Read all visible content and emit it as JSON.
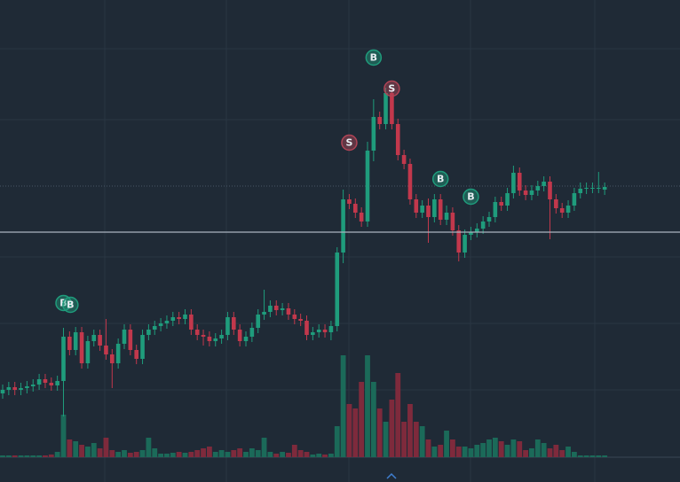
{
  "chart_data": {
    "type": "candlestick",
    "ylim": [
      0,
      544
    ],
    "up_color": "#1f9c7c",
    "down_color": "#c2384c",
    "volume_up_color": "#1b6a59",
    "volume_down_color": "#7e2a3c",
    "open": [
      100,
      104,
      107,
      104,
      106,
      108,
      110,
      116,
      112,
      109,
      114,
      164,
      149,
      169,
      134,
      159,
      166,
      154,
      144,
      134,
      156,
      172,
      149,
      139,
      166,
      172,
      176,
      179,
      182,
      186,
      184,
      189,
      172,
      166,
      164,
      159,
      162,
      166,
      186,
      172,
      159,
      164,
      174,
      189,
      192,
      199,
      194,
      196,
      189,
      184,
      182,
      166,
      169,
      172,
      169,
      176,
      259,
      319,
      314,
      304,
      294,
      374,
      412,
      404,
      439,
      404,
      369,
      359,
      319,
      304,
      312,
      299,
      319,
      296,
      304,
      284,
      259,
      279,
      282,
      286,
      294,
      299,
      316,
      312,
      326,
      349,
      329,
      324,
      329,
      334,
      339,
      319,
      309,
      304,
      312,
      326,
      331,
      332,
      332,
      330
    ],
    "high": [
      110,
      113,
      113,
      112,
      114,
      116,
      122,
      122,
      118,
      120,
      174,
      170,
      175,
      175,
      165,
      172,
      172,
      184,
      150,
      162,
      178,
      178,
      155,
      172,
      178,
      182,
      185,
      188,
      192,
      192,
      195,
      195,
      178,
      172,
      170,
      168,
      172,
      192,
      192,
      178,
      170,
      180,
      195,
      217,
      205,
      205,
      202,
      202,
      195,
      190,
      188,
      175,
      178,
      178,
      182,
      265,
      330,
      325,
      320,
      310,
      384,
      432,
      418,
      445,
      445,
      410,
      375,
      365,
      325,
      318,
      320,
      325,
      325,
      312,
      310,
      290,
      285,
      288,
      292,
      300,
      305,
      322,
      322,
      332,
      357,
      355,
      335,
      335,
      340,
      345,
      345,
      325,
      315,
      318,
      332,
      338,
      338,
      338,
      350,
      338
    ],
    "low": [
      94,
      98,
      98,
      98,
      100,
      102,
      104,
      106,
      103,
      103,
      74,
      143,
      143,
      128,
      128,
      153,
      148,
      138,
      106,
      128,
      150,
      143,
      133,
      133,
      160,
      166,
      170,
      173,
      176,
      178,
      178,
      166,
      160,
      154,
      153,
      153,
      156,
      160,
      166,
      153,
      153,
      158,
      168,
      183,
      186,
      188,
      188,
      183,
      178,
      176,
      160,
      160,
      163,
      163,
      160,
      170,
      247,
      308,
      298,
      288,
      288,
      362,
      398,
      398,
      398,
      363,
      353,
      313,
      298,
      298,
      270,
      293,
      290,
      290,
      278,
      249,
      253,
      273,
      276,
      280,
      288,
      293,
      306,
      306,
      320,
      323,
      318,
      318,
      323,
      328,
      274,
      303,
      298,
      298,
      306,
      320,
      325,
      326,
      326,
      324
    ],
    "close": [
      104,
      107,
      104,
      106,
      108,
      110,
      116,
      112,
      109,
      114,
      164,
      149,
      169,
      134,
      159,
      166,
      154,
      144,
      134,
      156,
      172,
      149,
      139,
      166,
      172,
      176,
      179,
      182,
      186,
      184,
      189,
      172,
      166,
      164,
      159,
      162,
      166,
      186,
      172,
      159,
      164,
      174,
      189,
      192,
      199,
      194,
      196,
      189,
      184,
      182,
      166,
      169,
      172,
      169,
      176,
      259,
      319,
      314,
      304,
      294,
      374,
      412,
      404,
      439,
      404,
      369,
      359,
      319,
      304,
      312,
      299,
      319,
      296,
      304,
      284,
      259,
      279,
      282,
      286,
      294,
      299,
      316,
      312,
      326,
      349,
      329,
      324,
      329,
      334,
      339,
      319,
      309,
      304,
      312,
      326,
      331,
      332,
      332,
      332,
      333
    ],
    "volume": [
      2,
      2,
      2,
      2,
      2,
      2,
      2,
      2,
      3,
      6,
      48,
      20,
      18,
      14,
      12,
      16,
      10,
      22,
      8,
      6,
      8,
      5,
      6,
      8,
      22,
      10,
      4,
      4,
      5,
      6,
      5,
      6,
      8,
      10,
      12,
      6,
      8,
      6,
      8,
      10,
      6,
      10,
      8,
      22,
      6,
      4,
      6,
      5,
      14,
      8,
      6,
      3,
      4,
      3,
      4,
      35,
      115,
      60,
      55,
      85,
      115,
      85,
      55,
      40,
      65,
      95,
      40,
      60,
      40,
      35,
      20,
      12,
      14,
      30,
      20,
      12,
      12,
      10,
      14,
      16,
      20,
      22,
      18,
      14,
      20,
      18,
      8,
      10,
      20,
      16,
      10,
      14,
      8,
      12,
      6,
      2,
      2,
      2,
      2,
      2
    ],
    "price_line": 282,
    "price_line_color": "#aab4bf",
    "last_price_line": 334,
    "last_price_line_color": "#4a5666",
    "markers": [
      {
        "label": "B",
        "index": 10,
        "price": 202,
        "color": "#1f9c7c"
      },
      {
        "label": "B",
        "index": 11,
        "price": 200,
        "color": "#1f9c7c"
      },
      {
        "label": "S",
        "index": 57,
        "price": 383,
        "color": "#b04456"
      },
      {
        "label": "B",
        "index": 61,
        "price": 479,
        "color": "#1f9c7c"
      },
      {
        "label": "S",
        "index": 64,
        "price": 444,
        "color": "#b04456"
      },
      {
        "label": "B",
        "index": 72,
        "price": 342,
        "color": "#1f9c7c"
      },
      {
        "label": "B",
        "index": 77,
        "price": 322,
        "color": "#1f9c7c"
      }
    ]
  }
}
